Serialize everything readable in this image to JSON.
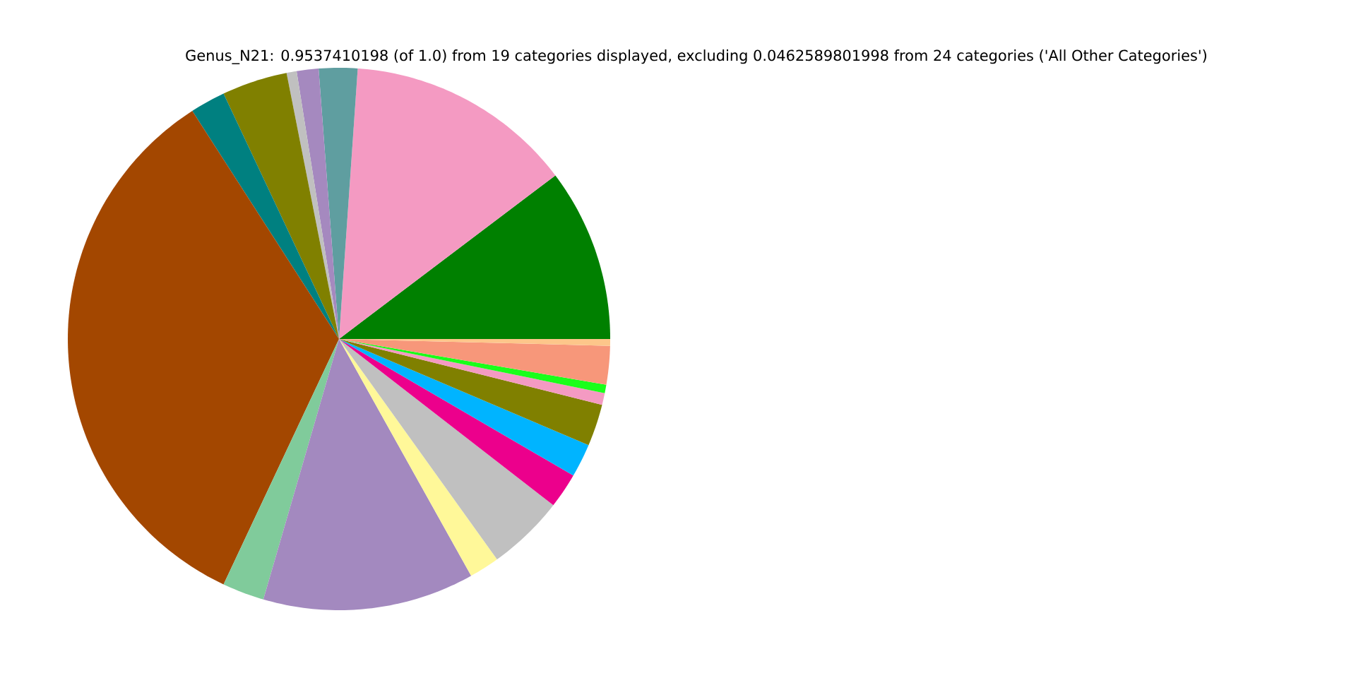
{
  "chart_data": {
    "type": "pie",
    "title": "Genus_N21: 0.9537410198 (of 1.0) from 19 categories displayed, excluding 0.0462589801998 from 24 categories ('All Other Categories')",
    "categories": [
      null,
      null,
      null,
      null,
      null,
      null,
      null,
      null,
      null,
      null,
      null,
      null,
      null,
      null,
      null,
      null,
      null,
      null,
      null
    ],
    "values": [
      10.3,
      13.6,
      2.3,
      1.3,
      0.6,
      3.9,
      2.1,
      33.9,
      2.5,
      12.6,
      1.8,
      4.6,
      2.1,
      2.0,
      2.5,
      0.7,
      0.5,
      2.3,
      0.4
    ],
    "colors": [
      "#008000",
      "#f49ac2",
      "#5f9ea0",
      "#a589bf",
      "#c0c0c0",
      "#808000",
      "#008080",
      "#a34700",
      "#80cb9b",
      "#a389bf",
      "#fff899",
      "#c0c0c0",
      "#ec008c",
      "#00b4ff",
      "#808000",
      "#f49ac2",
      "#1aff1a",
      "#f7977a",
      "#fdc68a"
    ]
  }
}
